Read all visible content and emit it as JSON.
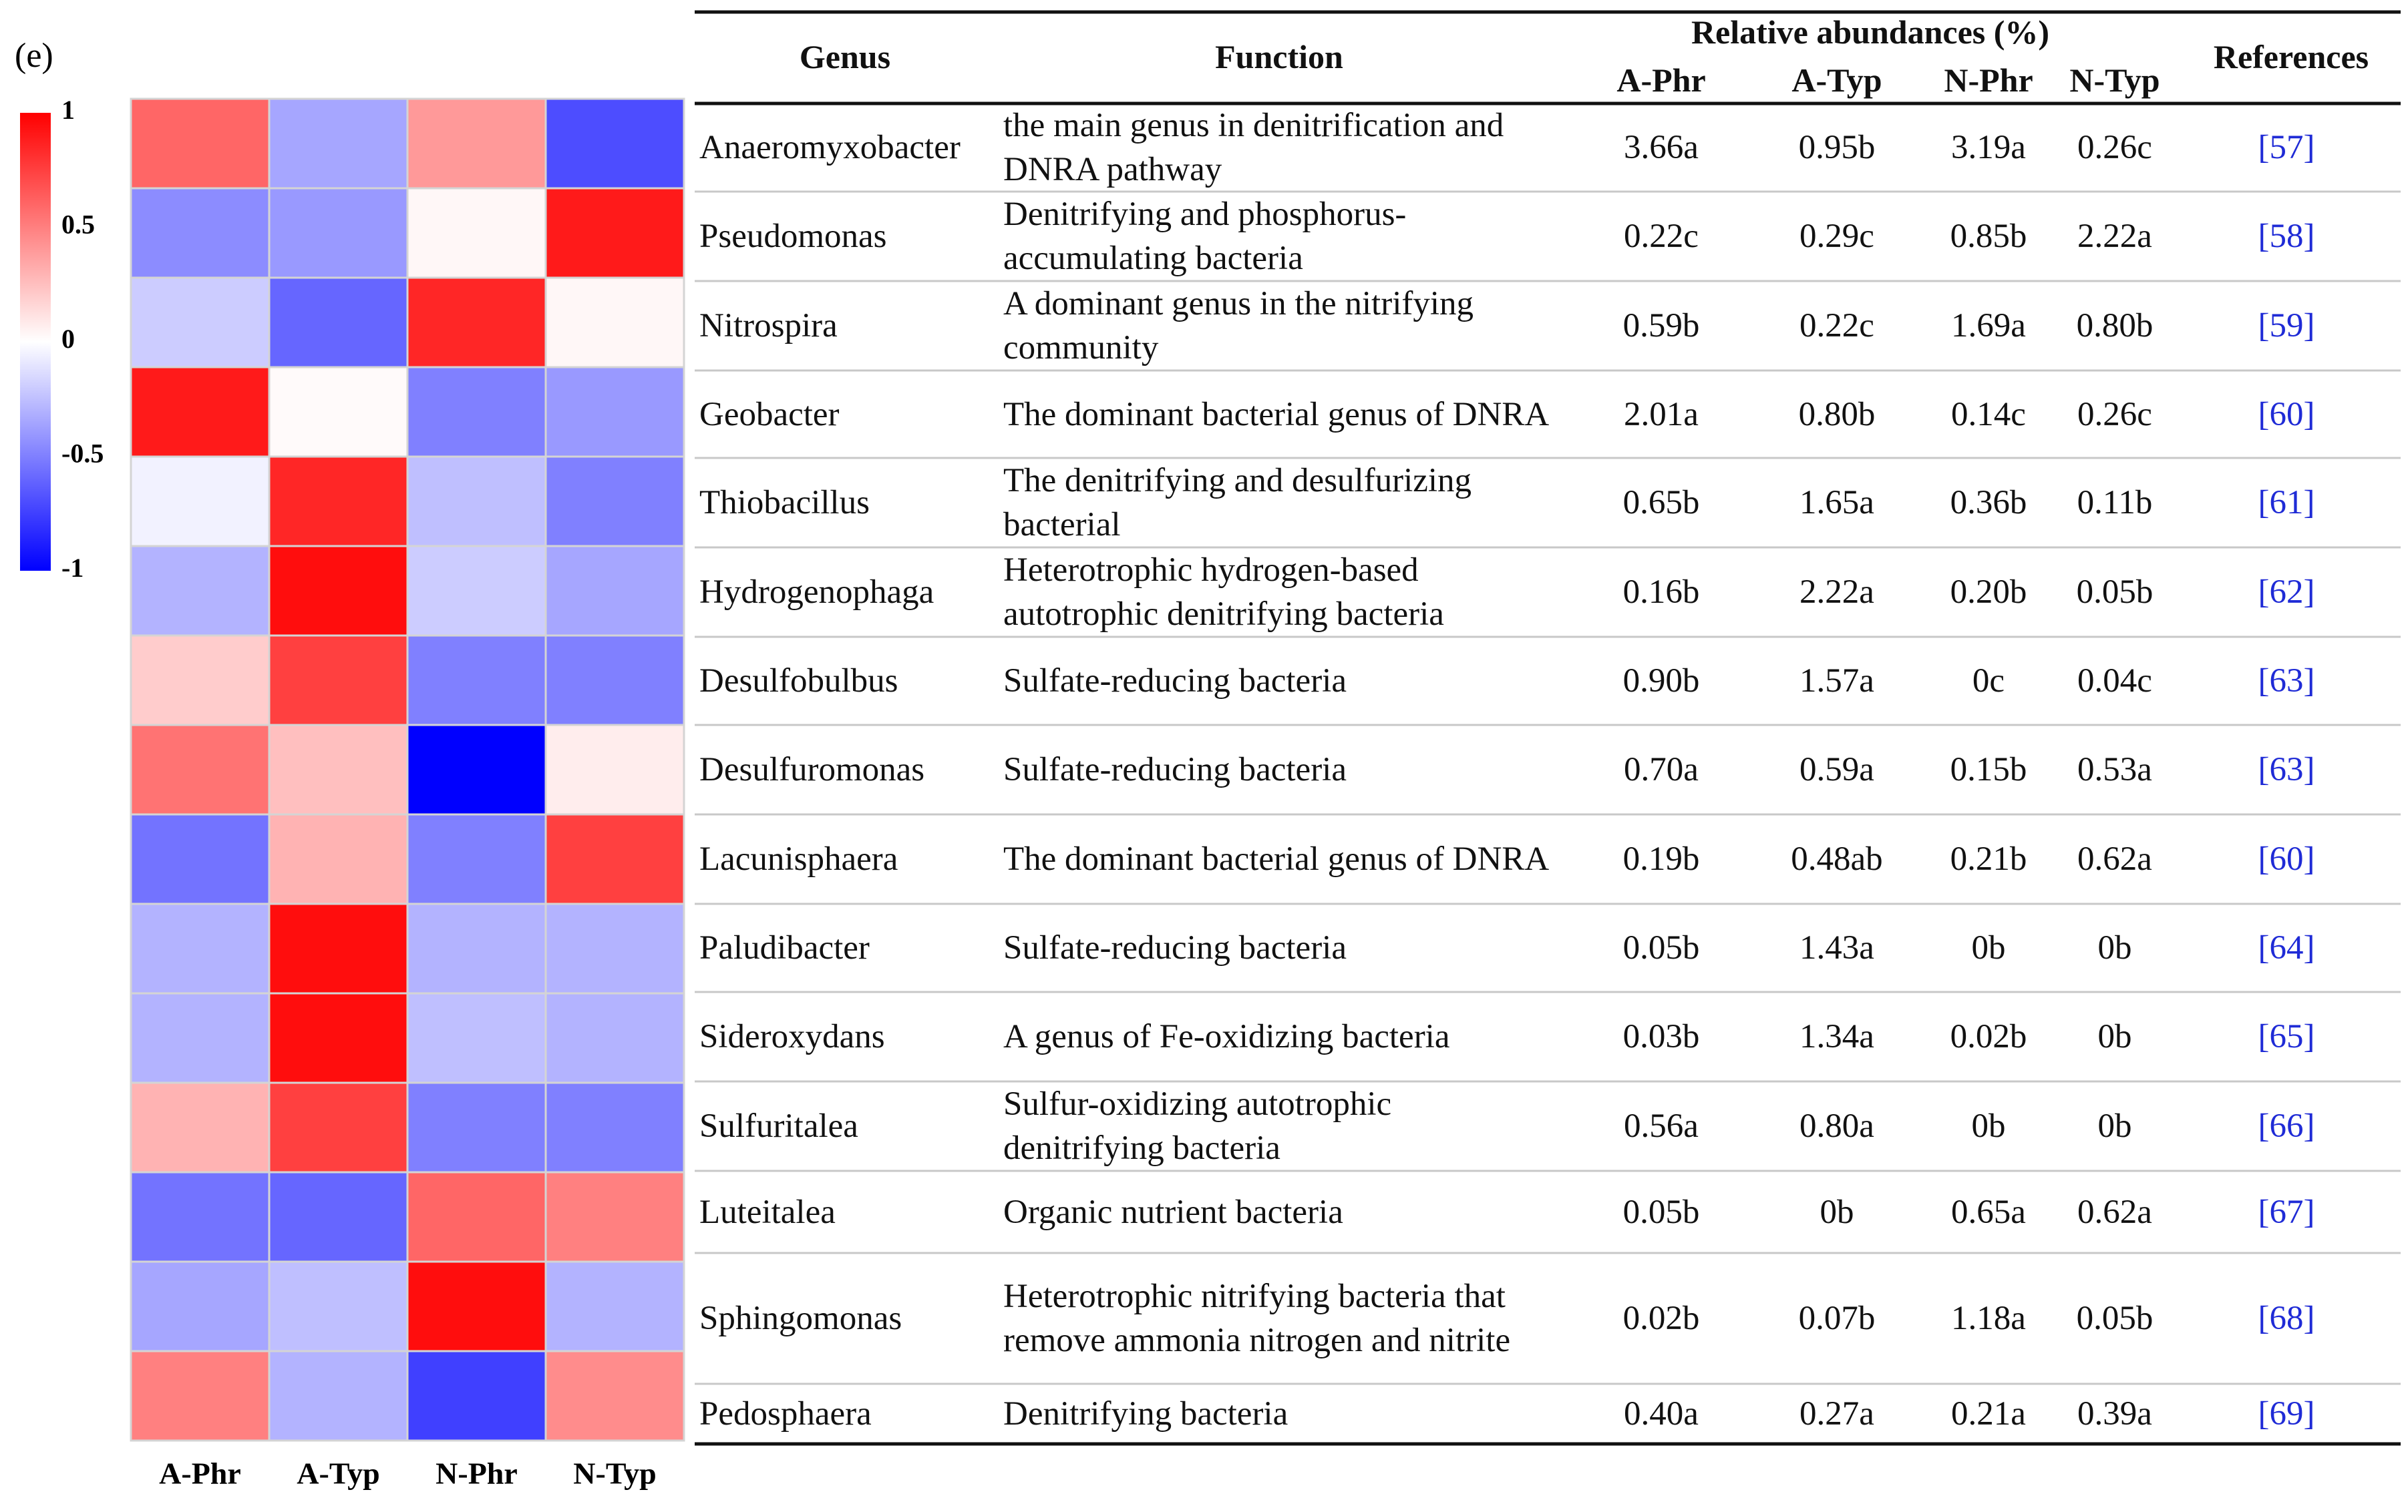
{
  "panel_label": "(e)",
  "chart_data": {
    "type": "heatmap",
    "x": [
      "A-Phr",
      "A-Typ",
      "N-Phr",
      "N-Typ"
    ],
    "values": [
      [
        0.6,
        -0.35,
        0.4,
        -0.7
      ],
      [
        -0.45,
        -0.4,
        0.03,
        0.9
      ],
      [
        -0.2,
        -0.6,
        0.85,
        0.03
      ],
      [
        0.9,
        0.02,
        -0.5,
        -0.4
      ],
      [
        -0.05,
        0.85,
        -0.25,
        -0.5
      ],
      [
        -0.3,
        0.95,
        -0.2,
        -0.35
      ],
      [
        0.2,
        0.75,
        -0.5,
        -0.5
      ],
      [
        0.55,
        0.25,
        -1,
        0.07
      ],
      [
        -0.55,
        0.3,
        -0.5,
        0.75
      ],
      [
        -0.3,
        0.95,
        -0.3,
        -0.3
      ],
      [
        -0.3,
        0.95,
        -0.25,
        -0.3
      ],
      [
        0.3,
        0.75,
        -0.5,
        -0.5
      ],
      [
        -0.55,
        -0.6,
        0.6,
        0.5
      ],
      [
        -0.35,
        -0.25,
        0.95,
        -0.3
      ],
      [
        0.5,
        -0.3,
        -0.75,
        0.45
      ]
    ],
    "clim": [
      -1,
      1
    ],
    "colorbar_ticks": [
      1,
      0.5,
      0,
      -0.5,
      -1
    ],
    "colors": {
      "low": "#0000ff",
      "mid": "#ffffff",
      "high": "#ff0000"
    }
  },
  "table": {
    "header": {
      "genus": "Genus",
      "function": "Function",
      "group": "Relative abundances (%)",
      "references": "References"
    },
    "rows": [
      [
        "Anaeromyxobacter",
        "the main genus in denitrification and DNRA pathway",
        "3.66a",
        "0.95b",
        "3.19a",
        "0.26c",
        "[57]"
      ],
      [
        "Pseudomonas",
        "Denitrifying and phosphorus-accumulating bacteria",
        "0.22c",
        "0.29c",
        "0.85b",
        "2.22a",
        "[58]"
      ],
      [
        "Nitrospira",
        "A dominant genus in the nitrifying community",
        "0.59b",
        "0.22c",
        "1.69a",
        "0.80b",
        "[59]"
      ],
      [
        "Geobacter",
        "The dominant bacterial genus of DNRA",
        "2.01a",
        "0.80b",
        "0.14c",
        "0.26c",
        "[60]"
      ],
      [
        "Thiobacillus",
        "The denitrifying and desulfurizing bacterial",
        "0.65b",
        "1.65a",
        "0.36b",
        "0.11b",
        "[61]"
      ],
      [
        "Hydrogenophaga",
        "Heterotrophic hydrogen-based autotrophic denitrifying bacteria",
        "0.16b",
        "2.22a",
        "0.20b",
        "0.05b",
        "[62]"
      ],
      [
        "Desulfobulbus",
        "Sulfate-reducing bacteria",
        "0.90b",
        "1.57a",
        "0c",
        "0.04c",
        "[63]"
      ],
      [
        "Desulfuromonas",
        "Sulfate-reducing bacteria",
        "0.70a",
        "0.59a",
        "0.15b",
        "0.53a",
        "[63]"
      ],
      [
        "Lacunisphaera",
        "The dominant bacterial genus of DNRA",
        "0.19b",
        "0.48ab",
        "0.21b",
        "0.62a",
        "[60]"
      ],
      [
        "Paludibacter",
        "Sulfate-reducing bacteria",
        "0.05b",
        "1.43a",
        "0b",
        "0b",
        "[64]"
      ],
      [
        "Sideroxydans",
        "A genus of Fe-oxidizing bacteria",
        "0.03b",
        "1.34a",
        "0.02b",
        "0b",
        "[65]"
      ],
      [
        "Sulfuritalea",
        "Sulfur-oxidizing autotrophic denitrifying bacteria",
        "0.56a",
        "0.80a",
        "0b",
        "0b",
        "[66]"
      ],
      [
        "Luteitalea",
        "Organic nutrient bacteria",
        "0.05b",
        "0b",
        "0.65a",
        "0.62a",
        "[67]"
      ],
      [
        "Sphingomonas",
        "Heterotrophic nitrifying bacteria that remove ammonia nitrogen and nitrite",
        "0.02b",
        "0.07b",
        "1.18a",
        "0.05b",
        "[68]"
      ],
      [
        "Pedosphaera",
        "Denitrifying bacteria",
        "0.40a",
        "0.27a",
        "0.21a",
        "0.39a",
        "[69]"
      ]
    ]
  }
}
